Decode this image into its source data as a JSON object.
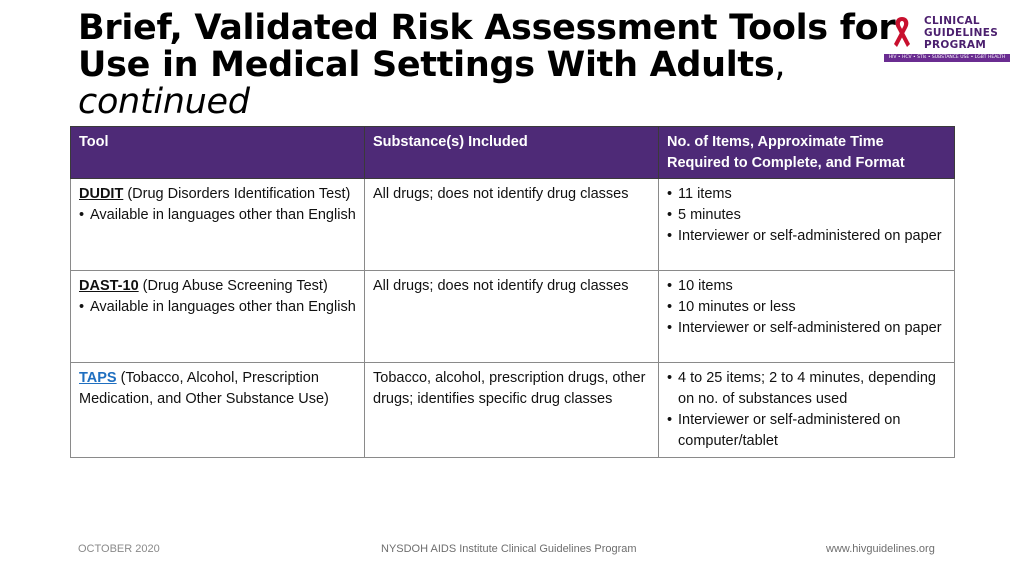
{
  "slide": {
    "title_bold": "Brief, Validated Risk Assessment Tools for Use in Medical Settings With Adults",
    "title_comma": ",",
    "title_continued": "continued"
  },
  "logo": {
    "line1": "CLINICAL",
    "line2": "GUIDELINES",
    "line3": "PROGRAM",
    "tagline": "HIV • HCV • STIs • SUBSTANCE USE • LGBT HEALTH",
    "ribbon_color": "#c8102e",
    "text_color": "#4b1f6e"
  },
  "table": {
    "headers": [
      "Tool",
      "Substance(s) Included",
      "No. of Items, Approximate Time Required to Complete, and Format"
    ],
    "rows": [
      {
        "tool_name": "DUDIT",
        "tool_desc": " (Drug Disorders Identification Test)",
        "tool_bullets": [
          "Available in languages other than English"
        ],
        "substances": "All drugs; does not identify drug classes",
        "format_bullets": [
          "11 items",
          "5 minutes",
          "Interviewer or self-administered on paper"
        ]
      },
      {
        "tool_name": "DAST-10",
        "tool_desc": " (Drug Abuse Screening Test)",
        "tool_bullets": [
          "Available in languages other than English"
        ],
        "substances": "All drugs; does not identify drug classes",
        "format_bullets": [
          "10 items",
          "10 minutes or less",
          "Interviewer or self-administered on paper"
        ]
      },
      {
        "tool_name": "TAPS",
        "tool_desc": " (Tobacco, Alcohol, Prescription Medication, and Other Substance Use)",
        "tool_bullets": [],
        "substances": "Tobacco, alcohol, prescription drugs, other drugs; identifies specific drug classes",
        "format_bullets": [
          "4 to 25 items; 2 to 4 minutes, depending on no. of substances used",
          "Interviewer or self-administered on computer/tablet"
        ]
      }
    ]
  },
  "footer": {
    "date": "OCTOBER 2020",
    "program": "NYSDOH AIDS Institute Clinical Guidelines Program",
    "url": "www.hivguidelines.org"
  },
  "colors": {
    "header_bg": "#4e2a77",
    "link": "#1f6fc0"
  }
}
